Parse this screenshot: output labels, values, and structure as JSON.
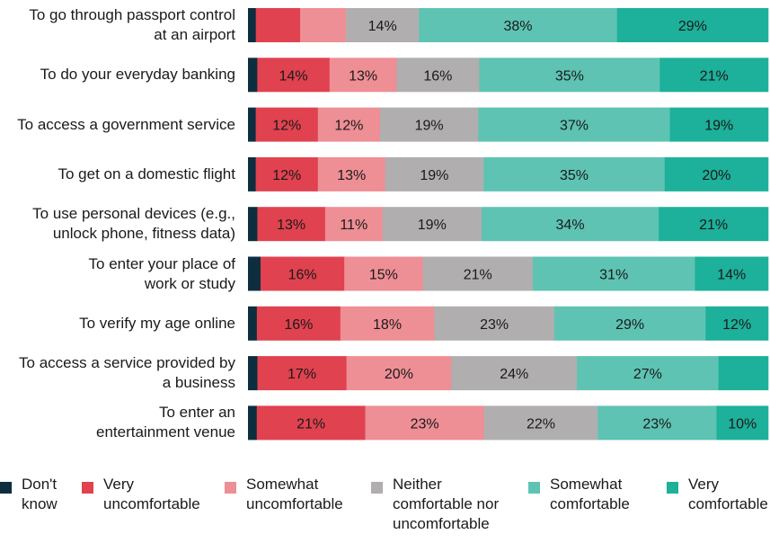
{
  "chart_data": {
    "type": "bar",
    "orientation": "horizontal",
    "stacked": true,
    "percent": true,
    "categories": [
      "To go through passport control\nat an airport",
      "To do your everyday banking",
      "To access a government service",
      "To get on a domestic flight",
      "To use personal devices (e.g.,\nunlock phone, fitness data)",
      "To enter your place of\nwork or study",
      "To verify my age online",
      "To access a service provided by\na business",
      "To enter an\nentertainment venue"
    ],
    "series": [
      {
        "name": "Don't know",
        "color": "#0d2e3f",
        "values": [
          1.5,
          1.8,
          1.5,
          1.5,
          1.8,
          2.4,
          1.7,
          1.8,
          1.7
        ]
      },
      {
        "name": "Very uncomfortable",
        "color": "#e0424f",
        "values": [
          8.5,
          14,
          12,
          12,
          13,
          16,
          16,
          17,
          21
        ]
      },
      {
        "name": "Somewhat uncomfortable",
        "color": "#ee8e95",
        "values": [
          8.8,
          13,
          12,
          13,
          11,
          15,
          18,
          20,
          23
        ]
      },
      {
        "name": "Neither comfortable nor uncomfortable",
        "color": "#b0aeae",
        "values": [
          14,
          16,
          19,
          19,
          19,
          21,
          23,
          24,
          22
        ]
      },
      {
        "name": "Somewhat comfortable",
        "color": "#5ec3b3",
        "values": [
          38,
          35,
          37,
          35,
          34,
          31,
          29,
          27,
          23
        ]
      },
      {
        "name": "Very comfortable",
        "color": "#1db09a",
        "values": [
          29,
          21,
          19,
          20,
          21,
          14,
          12,
          9.5,
          10
        ]
      }
    ],
    "data_labels": [
      [
        "",
        "",
        "",
        "14%",
        "38%",
        "29%"
      ],
      [
        "",
        "14%",
        "13%",
        "16%",
        "35%",
        "21%"
      ],
      [
        "",
        "12%",
        "12%",
        "19%",
        "37%",
        "19%"
      ],
      [
        "",
        "12%",
        "13%",
        "19%",
        "35%",
        "20%"
      ],
      [
        "",
        "13%",
        "11%",
        "19%",
        "34%",
        "21%"
      ],
      [
        "",
        "16%",
        "15%",
        "21%",
        "31%",
        "14%"
      ],
      [
        "",
        "16%",
        "18%",
        "23%",
        "29%",
        "12%"
      ],
      [
        "",
        "17%",
        "20%",
        "24%",
        "27%",
        ""
      ],
      [
        "",
        "21%",
        "23%",
        "22%",
        "23%",
        "10%"
      ]
    ],
    "xlim": [
      0,
      100
    ],
    "grid": false,
    "legend_position": "bottom"
  },
  "legend": [
    {
      "label": "Don't\nknow",
      "color": "#0d2e3f"
    },
    {
      "label": "Very\nuncomfortable",
      "color": "#e0424f"
    },
    {
      "label": "Somewhat\nuncomfortable",
      "color": "#ee8e95"
    },
    {
      "label": "Neither\ncomfortable nor\nuncomfortable",
      "color": "#b0aeae"
    },
    {
      "label": "Somewhat\ncomfortable",
      "color": "#5ec3b3"
    },
    {
      "label": "Very\ncomfortable",
      "color": "#1db09a"
    }
  ]
}
